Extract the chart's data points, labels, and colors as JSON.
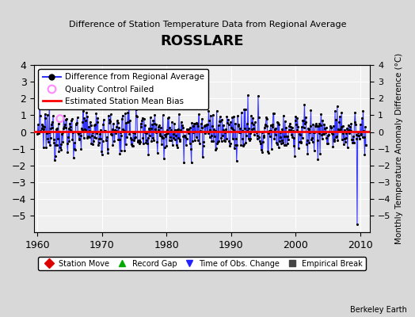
{
  "title": "ROSSLARE",
  "subtitle": "Difference of Station Temperature Data from Regional Average",
  "ylabel_right": "Monthly Temperature Anomaly Difference (°C)",
  "xlim": [
    1959.5,
    2011.5
  ],
  "ylim": [
    -6,
    4
  ],
  "yticks": [
    -5,
    -4,
    -3,
    -2,
    -1,
    0,
    1,
    2,
    3,
    4
  ],
  "xticks": [
    1960,
    1970,
    1980,
    1990,
    2000,
    2010
  ],
  "mean_bias": 0.05,
  "line_color": "#3333ff",
  "fill_color": "#aaaaff",
  "bias_color": "#ff0000",
  "dot_color": "#000000",
  "qc_color": "#ff88ff",
  "plot_bg": "#f0f0f0",
  "fig_bg": "#d8d8d8",
  "grid_color": "#ffffff",
  "seed": 12345,
  "start_year": 1960.0,
  "end_year": 2010.917,
  "big_dip_year": 2009.5,
  "big_dip_value": -5.5,
  "watermark": "Berkeley Earth",
  "bottom_legend": [
    {
      "label": "Station Move",
      "color": "#dd0000",
      "marker": "D"
    },
    {
      "label": "Record Gap",
      "color": "#00aa00",
      "marker": "^"
    },
    {
      "label": "Time of Obs. Change",
      "color": "#2222ff",
      "marker": "v"
    },
    {
      "label": "Empirical Break",
      "color": "#444444",
      "marker": "s"
    }
  ]
}
